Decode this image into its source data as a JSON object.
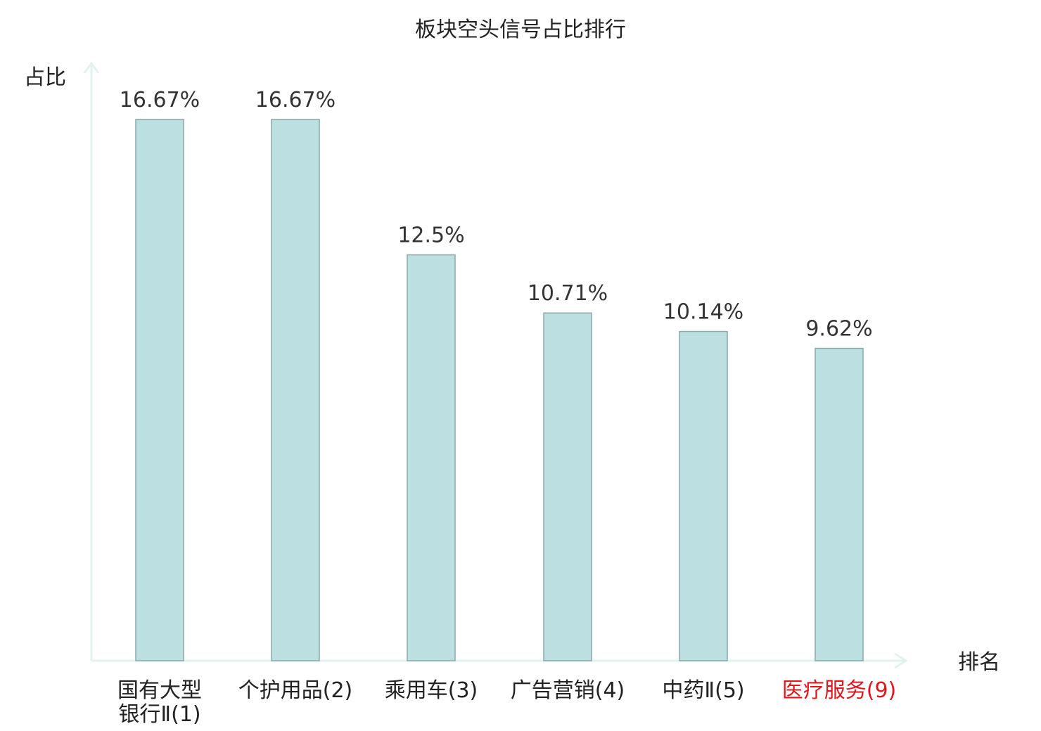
{
  "chart_data": {
    "type": "bar",
    "title": "板块空头信号占比排行",
    "ylabel": "占比",
    "xlabel": "排名",
    "ylim": [
      0,
      18.4
    ],
    "grid": false,
    "categories": [
      {
        "name": "国有大型银行Ⅱ",
        "rank": "(1)",
        "wrap": [
          "国有大型",
          "银行Ⅱ"
        ],
        "highlight": false
      },
      {
        "name": "个护用品",
        "rank": "(2)",
        "highlight": false
      },
      {
        "name": "乘用车",
        "rank": "(3)",
        "highlight": false
      },
      {
        "name": "广告营销",
        "rank": "(4)",
        "highlight": false
      },
      {
        "name": "中药Ⅱ",
        "rank": "(5)",
        "highlight": false
      },
      {
        "name": "医疗服务",
        "rank": "(9)",
        "highlight": true
      }
    ],
    "values": [
      16.67,
      16.67,
      12.5,
      10.71,
      10.14,
      9.62
    ],
    "value_labels": [
      "16.67%",
      "16.67%",
      "12.5%",
      "10.71%",
      "10.14%",
      "9.62%"
    ]
  },
  "colors": {
    "bar_fill": "#bce0e2",
    "bar_stroke": "#8aa8aa",
    "axis": "#e0f3f1",
    "text": "#222222",
    "highlight": "#e0161d"
  }
}
